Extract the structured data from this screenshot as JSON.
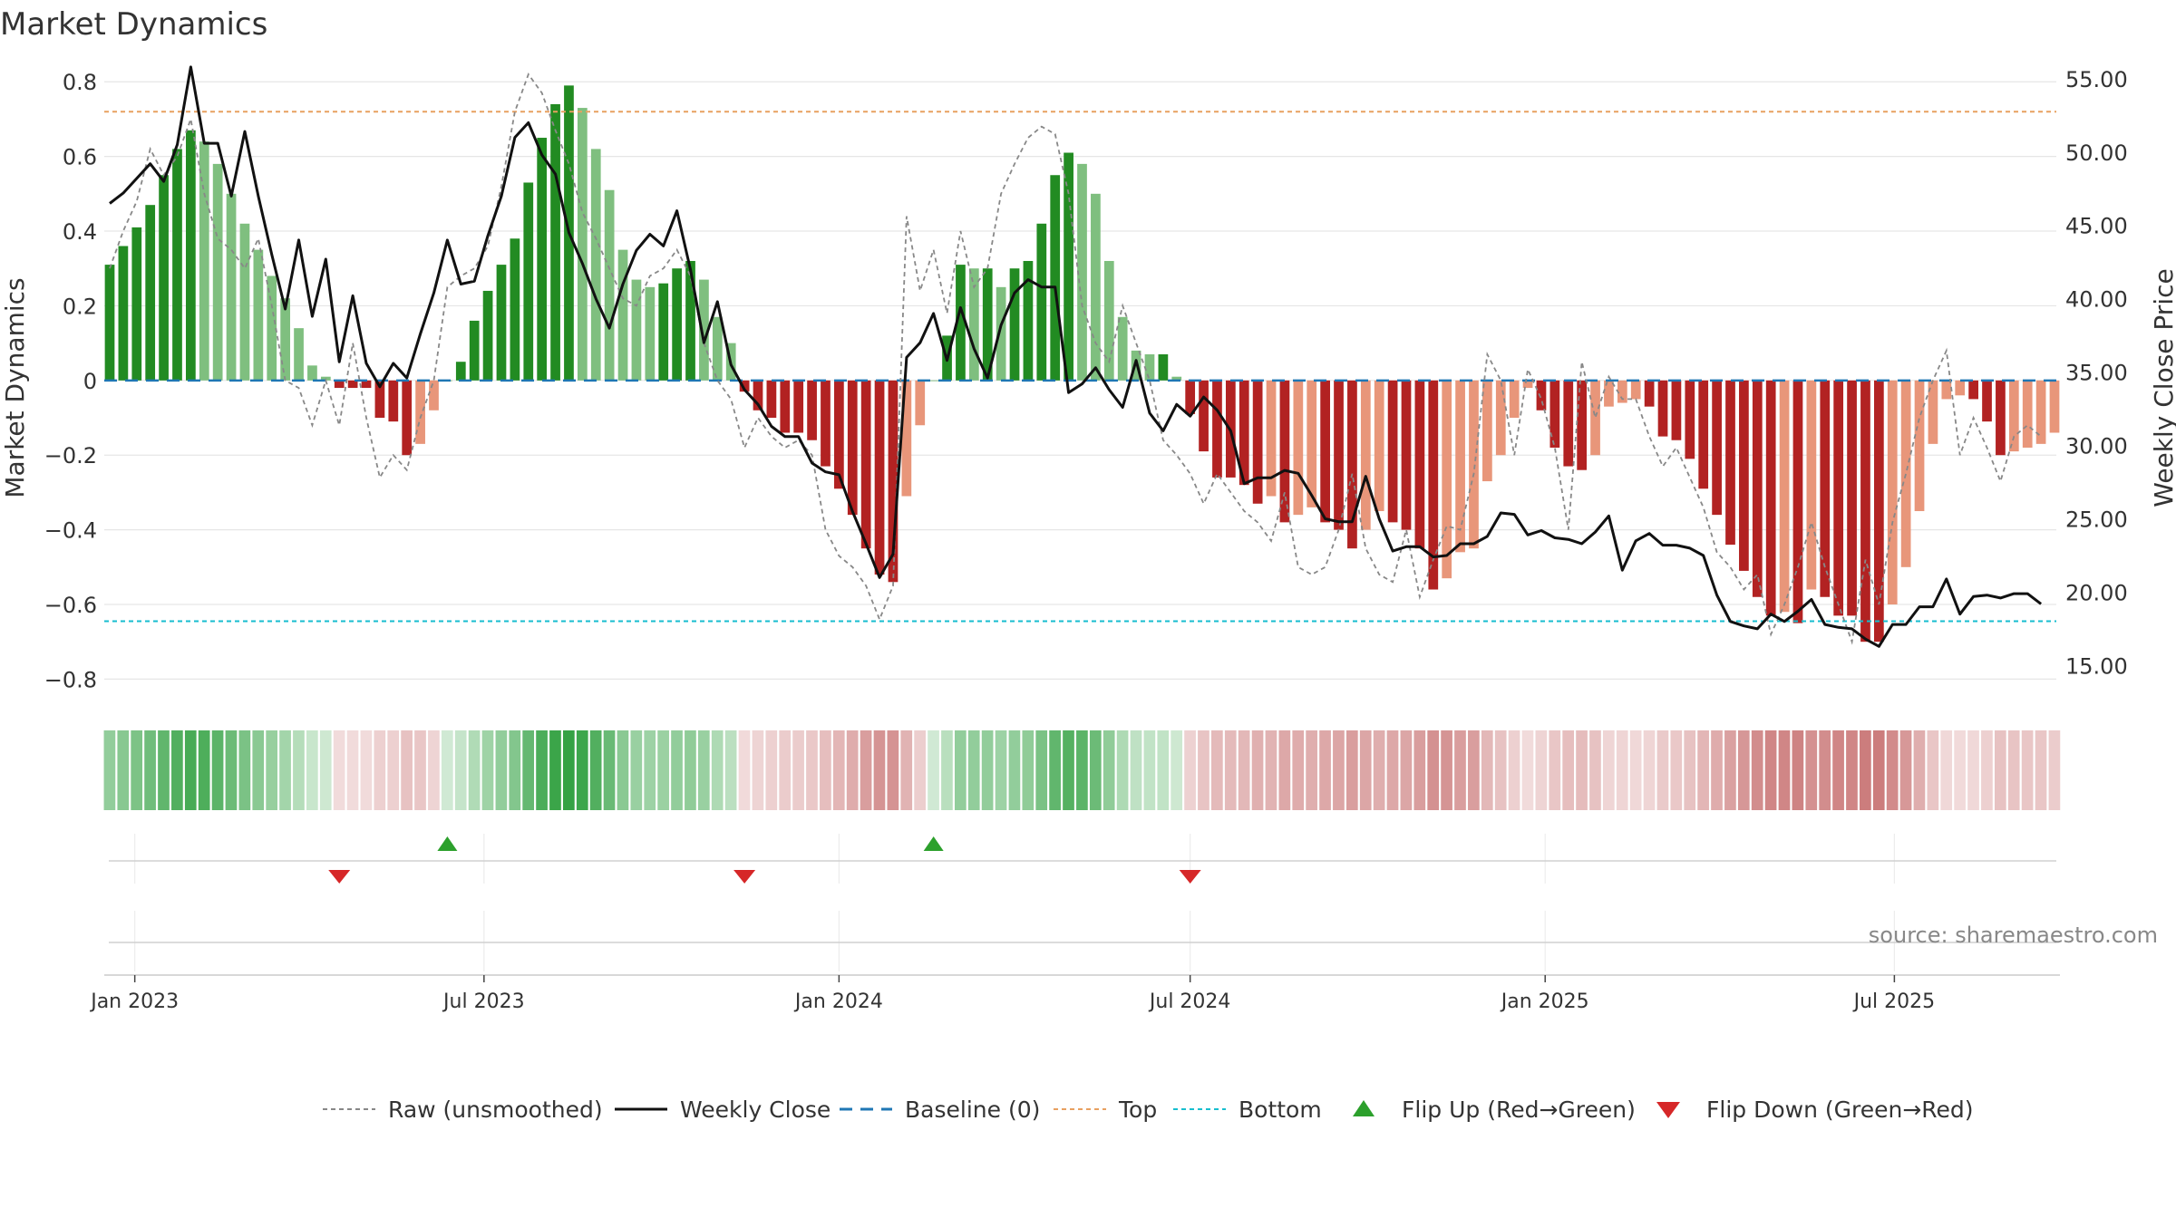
{
  "chart_data": {
    "type": "bar",
    "title": "Market Dynamics",
    "ylabel": "Market Dynamics",
    "y2label": "Weekly Close Price",
    "ylim": [
      -0.85,
      0.82
    ],
    "y2lim": [
      12.8,
      55.3
    ],
    "yticks": [
      "0.8",
      "0.6",
      "0.4",
      "0.2",
      "0",
      "−0.2",
      "−0.4",
      "−0.6",
      "−0.8"
    ],
    "y2ticks": [
      "55.00",
      "50.00",
      "45.00",
      "40.00",
      "35.00",
      "30.00",
      "25.00",
      "20.00",
      "15.00"
    ],
    "xticks": [
      "Jan 2023",
      "Jul 2023",
      "Jan 2024",
      "Jul 2024",
      "Jan 2025",
      "Jul 2025"
    ],
    "xtick_dates": [
      "2023-01-01",
      "2023-07-01",
      "2024-01-01",
      "2024-07-01",
      "2025-01-01",
      "2025-07-01"
    ],
    "x_start": "2022-12-19",
    "x_step_days": 7,
    "top_level": 0.72,
    "bottom_level": -0.645,
    "baseline_level": 0,
    "values": [
      0.31,
      0.36,
      0.41,
      0.47,
      0.55,
      0.62,
      0.67,
      0.64,
      0.58,
      0.5,
      0.42,
      0.35,
      0.28,
      0.22,
      0.14,
      0.04,
      0.01,
      -0.02,
      -0.02,
      -0.02,
      -0.1,
      -0.11,
      -0.2,
      -0.17,
      -0.08,
      0.0,
      0.05,
      0.16,
      0.24,
      0.31,
      0.38,
      0.53,
      0.65,
      0.74,
      0.79,
      0.73,
      0.62,
      0.51,
      0.35,
      0.27,
      0.25,
      0.26,
      0.3,
      0.32,
      0.27,
      0.17,
      0.1,
      -0.03,
      -0.08,
      -0.1,
      -0.14,
      -0.14,
      -0.16,
      -0.23,
      -0.29,
      -0.36,
      -0.45,
      -0.52,
      -0.54,
      -0.31,
      -0.12,
      0.0,
      0.12,
      0.31,
      0.3,
      0.3,
      0.25,
      0.3,
      0.32,
      0.42,
      0.55,
      0.61,
      0.58,
      0.5,
      0.32,
      0.17,
      0.08,
      0.07,
      0.07,
      0.01,
      -0.09,
      -0.19,
      -0.26,
      -0.26,
      -0.28,
      -0.33,
      -0.31,
      -0.38,
      -0.36,
      -0.34,
      -0.38,
      -0.4,
      -0.45,
      -0.4,
      -0.35,
      -0.38,
      -0.4,
      -0.45,
      -0.56,
      -0.53,
      -0.46,
      -0.45,
      -0.27,
      -0.2,
      -0.1,
      -0.02,
      -0.08,
      -0.18,
      -0.23,
      -0.24,
      -0.2,
      -0.07,
      -0.06,
      -0.05,
      -0.07,
      -0.15,
      -0.16,
      -0.21,
      -0.29,
      -0.36,
      -0.44,
      -0.51,
      -0.58,
      -0.63,
      -0.62,
      -0.65,
      -0.56,
      -0.58,
      -0.63,
      -0.63,
      -0.7,
      -0.7,
      -0.6,
      -0.5,
      -0.35,
      -0.17,
      -0.05,
      -0.04,
      -0.05,
      -0.11,
      -0.2,
      -0.19,
      -0.18,
      -0.17,
      -0.14
    ],
    "raw": [
      0.3,
      0.4,
      0.48,
      0.62,
      0.55,
      0.6,
      0.7,
      0.5,
      0.38,
      0.35,
      0.3,
      0.38,
      0.2,
      0.0,
      -0.02,
      -0.12,
      0.0,
      -0.12,
      0.1,
      -0.1,
      -0.26,
      -0.2,
      -0.24,
      -0.1,
      0.0,
      0.25,
      0.28,
      0.3,
      0.36,
      0.52,
      0.72,
      0.82,
      0.77,
      0.67,
      0.58,
      0.45,
      0.38,
      0.3,
      0.22,
      0.2,
      0.28,
      0.3,
      0.35,
      0.28,
      0.1,
      0.0,
      -0.05,
      -0.18,
      -0.1,
      -0.15,
      -0.18,
      -0.16,
      -0.2,
      -0.4,
      -0.47,
      -0.5,
      -0.55,
      -0.64,
      -0.55,
      0.44,
      0.24,
      0.35,
      0.18,
      0.4,
      0.25,
      0.3,
      0.5,
      0.58,
      0.65,
      0.68,
      0.66,
      0.5,
      0.2,
      0.1,
      0.05,
      0.2,
      0.1,
      0.0,
      -0.16,
      -0.2,
      -0.25,
      -0.33,
      -0.25,
      -0.3,
      -0.35,
      -0.38,
      -0.43,
      -0.3,
      -0.5,
      -0.52,
      -0.5,
      -0.4,
      -0.25,
      -0.45,
      -0.52,
      -0.54,
      -0.4,
      -0.58,
      -0.48,
      -0.39,
      -0.4,
      -0.25,
      0.07,
      0.0,
      -0.2,
      0.03,
      -0.05,
      -0.18,
      -0.4,
      0.05,
      -0.1,
      0.01,
      -0.05,
      -0.05,
      -0.15,
      -0.23,
      -0.18,
      -0.26,
      -0.34,
      -0.46,
      -0.5,
      -0.56,
      -0.52,
      -0.68,
      -0.6,
      -0.5,
      -0.38,
      -0.5,
      -0.6,
      -0.7,
      -0.48,
      -0.6,
      -0.38,
      -0.25,
      -0.1,
      0.0,
      0.08,
      -0.2,
      -0.1,
      -0.18,
      -0.27,
      -0.15,
      -0.12,
      -0.15
    ],
    "price": [
      46.5,
      47.2,
      48.2,
      49.2,
      48.0,
      50.5,
      55.8,
      50.6,
      50.6,
      47.0,
      51.4,
      47.0,
      43.0,
      39.3,
      44.0,
      38.8,
      42.7,
      35.7,
      40.2,
      35.6,
      34.0,
      35.6,
      34.6,
      37.6,
      40.4,
      44.0,
      41.0,
      41.2,
      44.3,
      47.0,
      51.0,
      52.0,
      49.8,
      48.5,
      44.5,
      42.4,
      40.0,
      38.0,
      41.0,
      43.3,
      44.4,
      43.6,
      46.0,
      42.0,
      37.0,
      39.8,
      35.5,
      33.8,
      32.8,
      31.3,
      30.6,
      30.6,
      28.8,
      28.2,
      28.0,
      25.5,
      23.3,
      21.0,
      22.6,
      36.0,
      37.0,
      39.0,
      35.8,
      39.4,
      36.6,
      34.6,
      38.2,
      40.4,
      41.3,
      40.8,
      40.8,
      33.6,
      34.2,
      35.3,
      33.8,
      32.6,
      35.8,
      32.2,
      31.0,
      32.8,
      32.0,
      33.3,
      32.4,
      31.0,
      27.4,
      27.8,
      27.8,
      28.3,
      28.1,
      26.6,
      25.0,
      24.8,
      24.8,
      27.9,
      25.0,
      22.8,
      23.1,
      23.1,
      22.4,
      22.5,
      23.3,
      23.3,
      23.8,
      25.4,
      25.3,
      23.9,
      24.2,
      23.7,
      23.6,
      23.3,
      24.1,
      25.2,
      21.5,
      23.5,
      24.0,
      23.2,
      23.2,
      23.0,
      22.5,
      19.8,
      18.0,
      17.7,
      17.5,
      18.5,
      18.0,
      18.7,
      19.5,
      17.8,
      17.6,
      17.5,
      16.8,
      16.3,
      17.8,
      17.8,
      19.0,
      19.0,
      20.9,
      18.5,
      19.7,
      19.8,
      19.6,
      19.9,
      19.9,
      19.2
    ],
    "flip_up_index": [
      25,
      61
    ],
    "flip_down_index": [
      17,
      47,
      80
    ],
    "legend": {
      "raw": "Raw (unsmoothed)",
      "close": "Weekly Close",
      "baseline": "Baseline (0)",
      "top": "Top",
      "bottom": "Bottom",
      "flip_up": "Flip Up (Red→Green)",
      "flip_down": "Flip Down (Green→Red)"
    },
    "legend_placement": "bottom-center",
    "grid": true,
    "source": "source: sharemaestro.com",
    "colors": {
      "green_strong": "#228b22",
      "green_light": "#7fbf7f",
      "red_strong": "#b22222",
      "red_light": "#e8967a",
      "close_line": "#111111",
      "raw_line": "#888888",
      "baseline": "#1f77b4",
      "top": "#e8a060",
      "bottom": "#17becf",
      "marker_up": "#2ca02c",
      "marker_down": "#d62728",
      "grid": "#e6e6e6",
      "text": "#333333"
    }
  }
}
